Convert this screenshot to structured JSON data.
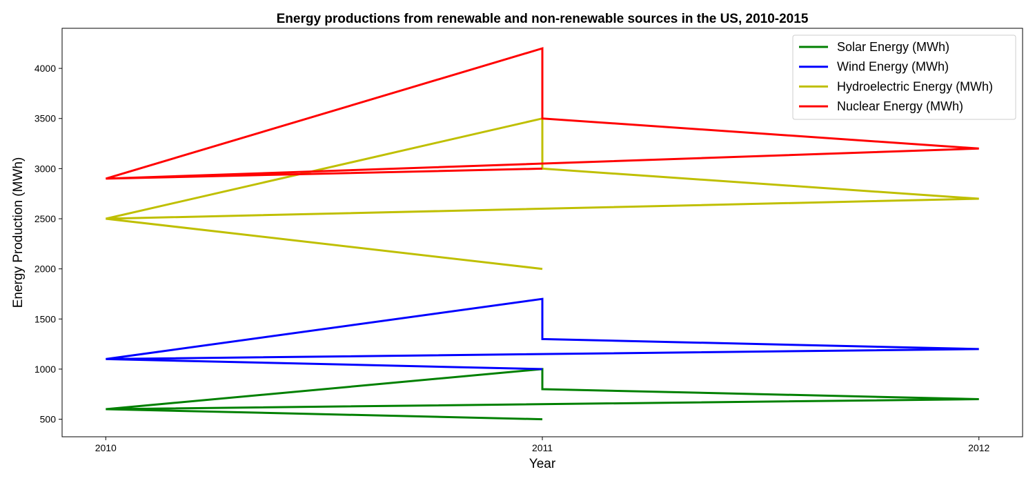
{
  "chart_data": {
    "type": "line",
    "title": "Energy productions from renewable and non-renewable sources in the US, 2010-2015",
    "xlabel": "Year",
    "ylabel": "Energy Production (MWh)",
    "xlim": [
      2009.9,
      2012.1
    ],
    "ylim": [
      325,
      4400
    ],
    "x_ticks": [
      2010,
      2011,
      2012
    ],
    "y_ticks": [
      500,
      1000,
      1500,
      2000,
      2500,
      3000,
      3500,
      4000
    ],
    "x_tick_labels": [
      "2010",
      "2011",
      "2012"
    ],
    "y_tick_labels": [
      "500",
      "1000",
      "1500",
      "2000",
      "2500",
      "3000",
      "3500",
      "4000"
    ],
    "grid": false,
    "legend_position": "top-right",
    "series": [
      {
        "name": "Solar Energy (MWh)",
        "color": "#008000",
        "x": [
          2010,
          2011,
          2011,
          2011,
          2012,
          2010,
          2011
        ],
        "y": [
          600,
          1000,
          800,
          800,
          700,
          600,
          500
        ]
      },
      {
        "name": "Wind Energy (MWh)",
        "color": "#0000ff",
        "x": [
          2010,
          2011,
          2011,
          2011,
          2012,
          2010,
          2011
        ],
        "y": [
          1100,
          1700,
          1300,
          1300,
          1200,
          1100,
          1000
        ]
      },
      {
        "name": "Hydroelectric Energy (MWh)",
        "color": "#bfbf00",
        "x": [
          2010,
          2011,
          2011,
          2011,
          2012,
          2010,
          2011
        ],
        "y": [
          2500,
          3500,
          3000,
          3000,
          2700,
          2500,
          2000
        ]
      },
      {
        "name": "Nuclear Energy (MWh)",
        "color": "#ff0000",
        "x": [
          2010,
          2011,
          2011,
          2011,
          2012,
          2010,
          2011
        ],
        "y": [
          2900,
          4200,
          3500,
          3500,
          3200,
          2900,
          3000
        ]
      }
    ]
  }
}
